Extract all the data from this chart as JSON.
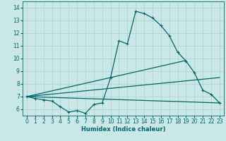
{
  "xlabel": "Humidex (Indice chaleur)",
  "background_color": "#cbe8e8",
  "line_color": "#006666",
  "grid_color": "#aacfcf",
  "xlim": [
    -0.5,
    23.5
  ],
  "ylim": [
    5.5,
    14.5
  ],
  "xticks": [
    0,
    1,
    2,
    3,
    4,
    5,
    6,
    7,
    8,
    9,
    10,
    11,
    12,
    13,
    14,
    15,
    16,
    17,
    18,
    19,
    20,
    21,
    22,
    23
  ],
  "yticks": [
    6,
    7,
    8,
    9,
    10,
    11,
    12,
    13,
    14
  ],
  "line1_x": [
    0,
    1,
    2,
    3,
    4,
    5,
    6,
    7,
    8,
    9,
    10,
    11,
    12,
    13,
    14,
    15,
    16,
    17,
    18,
    19,
    20,
    21,
    22,
    23
  ],
  "line1_y": [
    7.0,
    6.85,
    6.75,
    6.65,
    6.2,
    5.78,
    5.9,
    5.68,
    6.38,
    6.5,
    8.5,
    11.4,
    11.15,
    13.72,
    13.55,
    13.2,
    12.6,
    11.8,
    10.5,
    9.8,
    8.88,
    7.5,
    7.18,
    6.5
  ],
  "line2_x": [
    0,
    19
  ],
  "line2_y": [
    7.0,
    9.85
  ],
  "line3_x": [
    0,
    23
  ],
  "line3_y": [
    7.0,
    8.5
  ],
  "line4_x": [
    0,
    23
  ],
  "line4_y": [
    7.0,
    6.5
  ]
}
